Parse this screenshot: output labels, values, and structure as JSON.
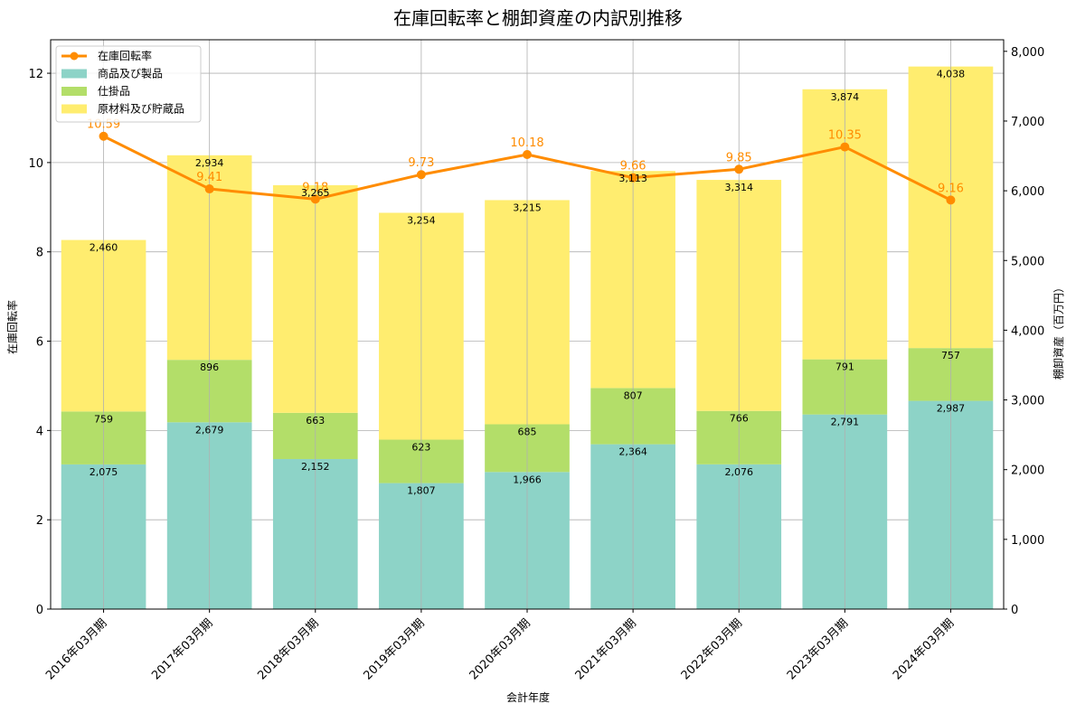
{
  "chart_data": {
    "type": "bar",
    "title": "在庫回転率と棚卸資産の内訳別推移",
    "xlabel": "会計年度",
    "ylabel_left": "在庫回転率",
    "ylabel_right": "棚卸資産（百万円）",
    "categories": [
      "2016年03月期",
      "2017年03月期",
      "2018年03月期",
      "2019年03月期",
      "2020年03月期",
      "2021年03月期",
      "2022年03月期",
      "2023年03月期",
      "2024年03月期"
    ],
    "left_axis": {
      "ylim": [
        0,
        12.75
      ],
      "ticks": [
        0,
        2,
        4,
        6,
        8,
        10,
        12
      ]
    },
    "right_axis": {
      "ylim": [
        0,
        8166
      ],
      "ticks": [
        0,
        1000,
        2000,
        3000,
        4000,
        5000,
        6000,
        7000,
        8000
      ],
      "tick_labels": [
        "0",
        "1,000",
        "2,000",
        "3,000",
        "4,000",
        "5,000",
        "6,000",
        "7,000",
        "8,000"
      ]
    },
    "grid": true,
    "legend_position": "top-left",
    "series": [
      {
        "name": "商品及び製品",
        "kind": "bar",
        "axis": "right",
        "color": "#8dd3c7",
        "values": [
          2075,
          2679,
          2152,
          1807,
          1966,
          2364,
          2076,
          2791,
          2987
        ],
        "labels": [
          "2,075",
          "2,679",
          "2,152",
          "1,807",
          "1,966",
          "2,364",
          "2,076",
          "2,791",
          "2,987"
        ]
      },
      {
        "name": "仕掛品",
        "kind": "bar",
        "axis": "right",
        "color": "#b3de69",
        "values": [
          759,
          896,
          663,
          623,
          685,
          807,
          766,
          791,
          757
        ],
        "labels": [
          "759",
          "896",
          "663",
          "623",
          "685",
          "807",
          "766",
          "791",
          "757"
        ]
      },
      {
        "name": "原材料及び貯蔵品",
        "kind": "bar",
        "axis": "right",
        "color": "#ffed6f",
        "values": [
          2460,
          2934,
          3265,
          3254,
          3215,
          3113,
          3314,
          3874,
          4038
        ],
        "labels": [
          "2,460",
          "2,934",
          "3,265",
          "3,254",
          "3,215",
          "3,113",
          "3,314",
          "3,874",
          "4,038"
        ]
      },
      {
        "name": "在庫回転率",
        "kind": "line",
        "axis": "left",
        "color": "#ff8c00",
        "values": [
          10.59,
          9.41,
          9.18,
          9.73,
          10.18,
          9.66,
          9.85,
          10.35,
          9.16
        ],
        "labels": [
          "10.59",
          "9.41",
          "9.18",
          "9.73",
          "10.18",
          "9.66",
          "9.85",
          "10.35",
          "9.16"
        ]
      }
    ]
  }
}
